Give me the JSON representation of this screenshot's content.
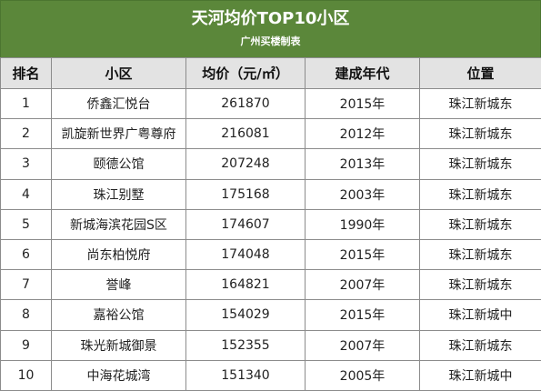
{
  "header": {
    "title": "天河均价TOP10小区",
    "subtitle": "广州买楼制表"
  },
  "colors": {
    "header_bg": "#5b873a",
    "column_header_bg": "#e3e3e3",
    "border": "#8c8c8c"
  },
  "table": {
    "columns": [
      "排名",
      "小区",
      "均价（元/㎡）",
      "建成年代",
      "位置"
    ],
    "rows": [
      [
        "1",
        "侨鑫汇悦台",
        "261870",
        "2015年",
        "珠江新城东"
      ],
      [
        "2",
        "凯旋新世界广粤尊府",
        "216081",
        "2012年",
        "珠江新城东"
      ],
      [
        "3",
        "颐德公馆",
        "207248",
        "2013年",
        "珠江新城东"
      ],
      [
        "4",
        "珠江别墅",
        "175168",
        "2003年",
        "珠江新城东"
      ],
      [
        "5",
        "新城海滨花园S区",
        "174607",
        "1990年",
        "珠江新城东"
      ],
      [
        "6",
        "尚东柏悦府",
        "174048",
        "2015年",
        "珠江新城东"
      ],
      [
        "7",
        "誉峰",
        "164821",
        "2007年",
        "珠江新城东"
      ],
      [
        "8",
        "嘉裕公馆",
        "154029",
        "2015年",
        "珠江新城中"
      ],
      [
        "9",
        "珠光新城御景",
        "152355",
        "2007年",
        "珠江新城东"
      ],
      [
        "10",
        "中海花城湾",
        "151340",
        "2005年",
        "珠江新城中"
      ]
    ]
  }
}
